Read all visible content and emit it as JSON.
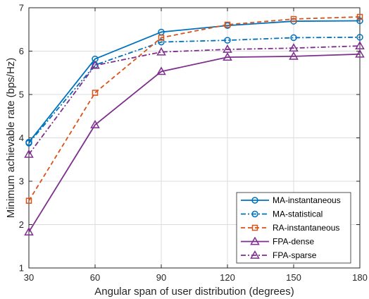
{
  "chart_data": {
    "type": "line",
    "xlabel": "Angular span of user distribution (degrees)",
    "ylabel": "Minimum achievable rate (bps/Hz)",
    "x": [
      30,
      60,
      90,
      120,
      150,
      180
    ],
    "xlim": [
      30,
      180
    ],
    "ylim": [
      1,
      7
    ],
    "xticks": [
      30,
      60,
      90,
      120,
      150,
      180
    ],
    "yticks": [
      1,
      2,
      3,
      4,
      5,
      6,
      7
    ],
    "grid": true,
    "legend_position": "bottom-right",
    "series": [
      {
        "name": "MA-instantaneous",
        "values": [
          3.9,
          5.82,
          6.44,
          6.59,
          6.69,
          6.7
        ],
        "color": "#0072BD",
        "dash": "solid",
        "marker": "circle"
      },
      {
        "name": "MA-statistical",
        "values": [
          3.88,
          5.68,
          6.21,
          6.25,
          6.31,
          6.32
        ],
        "color": "#0072BD",
        "dash": "dashdot",
        "marker": "circle"
      },
      {
        "name": "RA-instantaneous",
        "values": [
          2.55,
          5.04,
          6.31,
          6.61,
          6.74,
          6.79
        ],
        "color": "#D95319",
        "dash": "dashed",
        "marker": "square"
      },
      {
        "name": "FPA-dense",
        "values": [
          1.83,
          4.3,
          5.53,
          5.86,
          5.88,
          5.93
        ],
        "color": "#7E2F8E",
        "dash": "solid",
        "marker": "triangle"
      },
      {
        "name": "FPA-sparse",
        "values": [
          3.62,
          5.67,
          5.98,
          6.04,
          6.07,
          6.12
        ],
        "color": "#7E2F8E",
        "dash": "dashdot",
        "marker": "triangle"
      }
    ]
  }
}
